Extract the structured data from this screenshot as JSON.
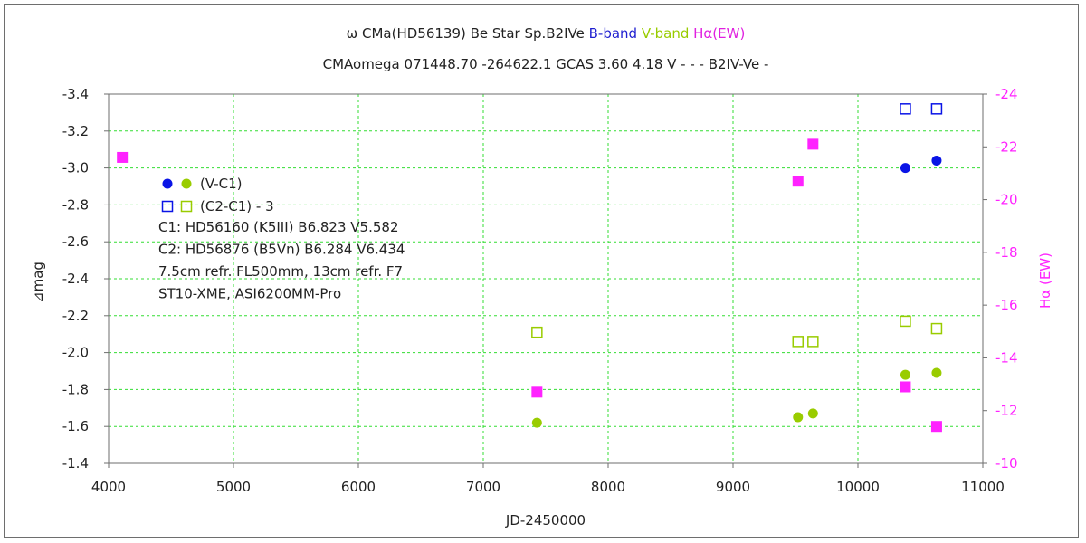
{
  "chart_data": {
    "type": "scatter",
    "title_parts": [
      {
        "text": "ω  CMa(HD56139)   Be Star   Sp.B2IVe",
        "color": "#222222"
      },
      {
        "text": "B-band",
        "color": "#1f1fd0"
      },
      {
        "text": "V-band",
        "color": "#99cc00"
      },
      {
        "text": "Hα(EW)",
        "color": "#e020e0"
      }
    ],
    "subtitle": "CMAomega 071448.70 -264622.1 GCAS 3.60 4.18 V - - - B2IV-Ve -",
    "xlabel": "JD-2450000",
    "ylabel": "⊿mag",
    "y2label": "Hα (EW)",
    "xlim": [
      4000,
      11000
    ],
    "ylim": [
      -1.4,
      -3.4
    ],
    "y2lim": [
      -10,
      -24
    ],
    "xticks": [
      "4000",
      "5000",
      "6000",
      "7000",
      "8000",
      "9000",
      "10000",
      "11000"
    ],
    "yticks": [
      "-3.4",
      "-3.2",
      "-3.0",
      "-2.8",
      "-2.6",
      "-2.4",
      "-2.2",
      "-2.0",
      "-1.8",
      "-1.6",
      "-1.4"
    ],
    "y2ticks": [
      "-24",
      "-22",
      "-20",
      "-18",
      "-16",
      "-14",
      "-12",
      "-10"
    ],
    "grid": true,
    "colors": {
      "b_band": "#0a14e6",
      "v_band": "#99cc00",
      "halpha": "#ff22ff",
      "grid": "#33dd33"
    },
    "series": [
      {
        "band": "B",
        "marker": "filled-circle",
        "axis": "left",
        "x": [
          10380,
          10630
        ],
        "y": [
          -3.0,
          -3.04
        ]
      },
      {
        "band": "V",
        "marker": "filled-circle",
        "axis": "left",
        "x": [
          7430,
          9520,
          9640,
          10380,
          10630
        ],
        "y": [
          -1.62,
          -1.65,
          -1.67,
          -1.88,
          -1.89
        ]
      },
      {
        "band": "B",
        "marker": "open-square",
        "axis": "left",
        "x": [
          10380,
          10630
        ],
        "y": [
          -3.32,
          -3.32
        ]
      },
      {
        "band": "V",
        "marker": "open-square",
        "axis": "left",
        "x": [
          7430,
          9520,
          9640,
          10380,
          10630
        ],
        "y": [
          -2.11,
          -2.06,
          -2.06,
          -2.17,
          -2.13
        ]
      },
      {
        "band": "Hα",
        "marker": "filled-square",
        "axis": "right",
        "x": [
          4110,
          7430,
          9520,
          9640,
          10380,
          10630
        ],
        "y": [
          -21.6,
          -12.7,
          -20.7,
          -22.1,
          -12.9,
          -11.4
        ]
      }
    ],
    "legend": [
      {
        "label": "(V-C1)",
        "marker": "filled-circle"
      },
      {
        "label": "(C2-C1) - 3",
        "marker": "open-square"
      }
    ],
    "annotations": [
      "C1: HD56160 (K5III)  B6.823  V5.582",
      "C2: HD56876 (B5Vn)  B6.284  V6.434",
      "7.5cm refr. FL500mm,   13cm refr. F7",
      "ST10-XME,    ASI6200MM-Pro"
    ]
  }
}
